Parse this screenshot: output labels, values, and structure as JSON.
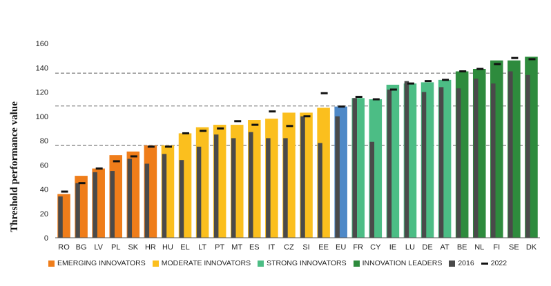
{
  "chart_data": {
    "type": "bar",
    "ylabel": "Threshold performance value",
    "xlabel": "",
    "ylim": [
      0,
      160
    ],
    "yticks": [
      0,
      20,
      40,
      60,
      80,
      100,
      120,
      140,
      160
    ],
    "reference_lines": [
      76,
      108.5,
      135.5
    ],
    "categories": [
      "RO",
      "BG",
      "LV",
      "PL",
      "SK",
      "HR",
      "HU",
      "EL",
      "LT",
      "PT",
      "MT",
      "ES",
      "IT",
      "CZ",
      "SI",
      "EE",
      "EU",
      "FR",
      "CY",
      "IE",
      "LU",
      "DE",
      "AT",
      "BE",
      "NL",
      "FI",
      "SE",
      "DK"
    ],
    "groups": [
      "emerging",
      "emerging",
      "emerging",
      "emerging",
      "emerging",
      "emerging",
      "moderate",
      "moderate",
      "moderate",
      "moderate",
      "moderate",
      "moderate",
      "moderate",
      "moderate",
      "moderate",
      "moderate",
      "eu",
      "strong",
      "strong",
      "strong",
      "strong",
      "strong",
      "strong",
      "leaders",
      "leaders",
      "leaders",
      "leaders",
      "leaders"
    ],
    "series": [
      {
        "key": "current",
        "values": [
          36,
          51,
          57,
          68,
          71,
          76,
          76,
          86,
          91,
          93,
          93,
          97,
          98,
          103,
          103,
          107,
          108,
          115,
          114,
          126,
          127,
          128,
          130,
          137,
          139,
          146,
          146,
          149
        ]
      },
      {
        "name": "2016",
        "values": [
          34,
          45,
          54,
          55,
          65,
          61,
          69,
          64,
          75,
          85,
          82,
          87,
          82,
          82,
          100,
          78,
          100,
          115,
          79,
          122,
          129,
          120,
          124,
          123,
          131,
          127,
          137,
          134
        ]
      },
      {
        "name": "2022",
        "values": [
          38,
          45,
          57,
          63,
          67,
          75,
          75,
          86,
          88,
          90,
          96,
          93,
          104,
          92,
          100,
          119,
          108,
          116,
          114,
          122,
          127,
          129,
          130,
          137,
          139,
          143,
          148,
          147
        ]
      }
    ],
    "legend": [
      {
        "label": "EMERGING INNOVATORS",
        "color": "#ef7d1a",
        "kind": "swatch"
      },
      {
        "label": "MODERATE INNOVATORS",
        "color": "#fbbf1e",
        "kind": "swatch"
      },
      {
        "label": "STRONG INNOVATORS",
        "color": "#4cbd85",
        "kind": "swatch"
      },
      {
        "label": "INNOVATION LEADERS",
        "color": "#2e8b3d",
        "kind": "swatch"
      },
      {
        "label": "2016",
        "color": "#4a4a4a",
        "kind": "swatch"
      },
      {
        "label": "2022",
        "color": "#111111",
        "kind": "dash"
      }
    ],
    "colors": {
      "emerging": "#ef7d1a",
      "moderate": "#fbbf1e",
      "eu": "#4e88c7",
      "strong": "#4cbd85",
      "leaders": "#2e8b3d",
      "bar2016": "#4a4a4a",
      "marker2022": "#111111",
      "refline": "#8a8a8a"
    },
    "legend_position": "bottom",
    "grid": false
  }
}
